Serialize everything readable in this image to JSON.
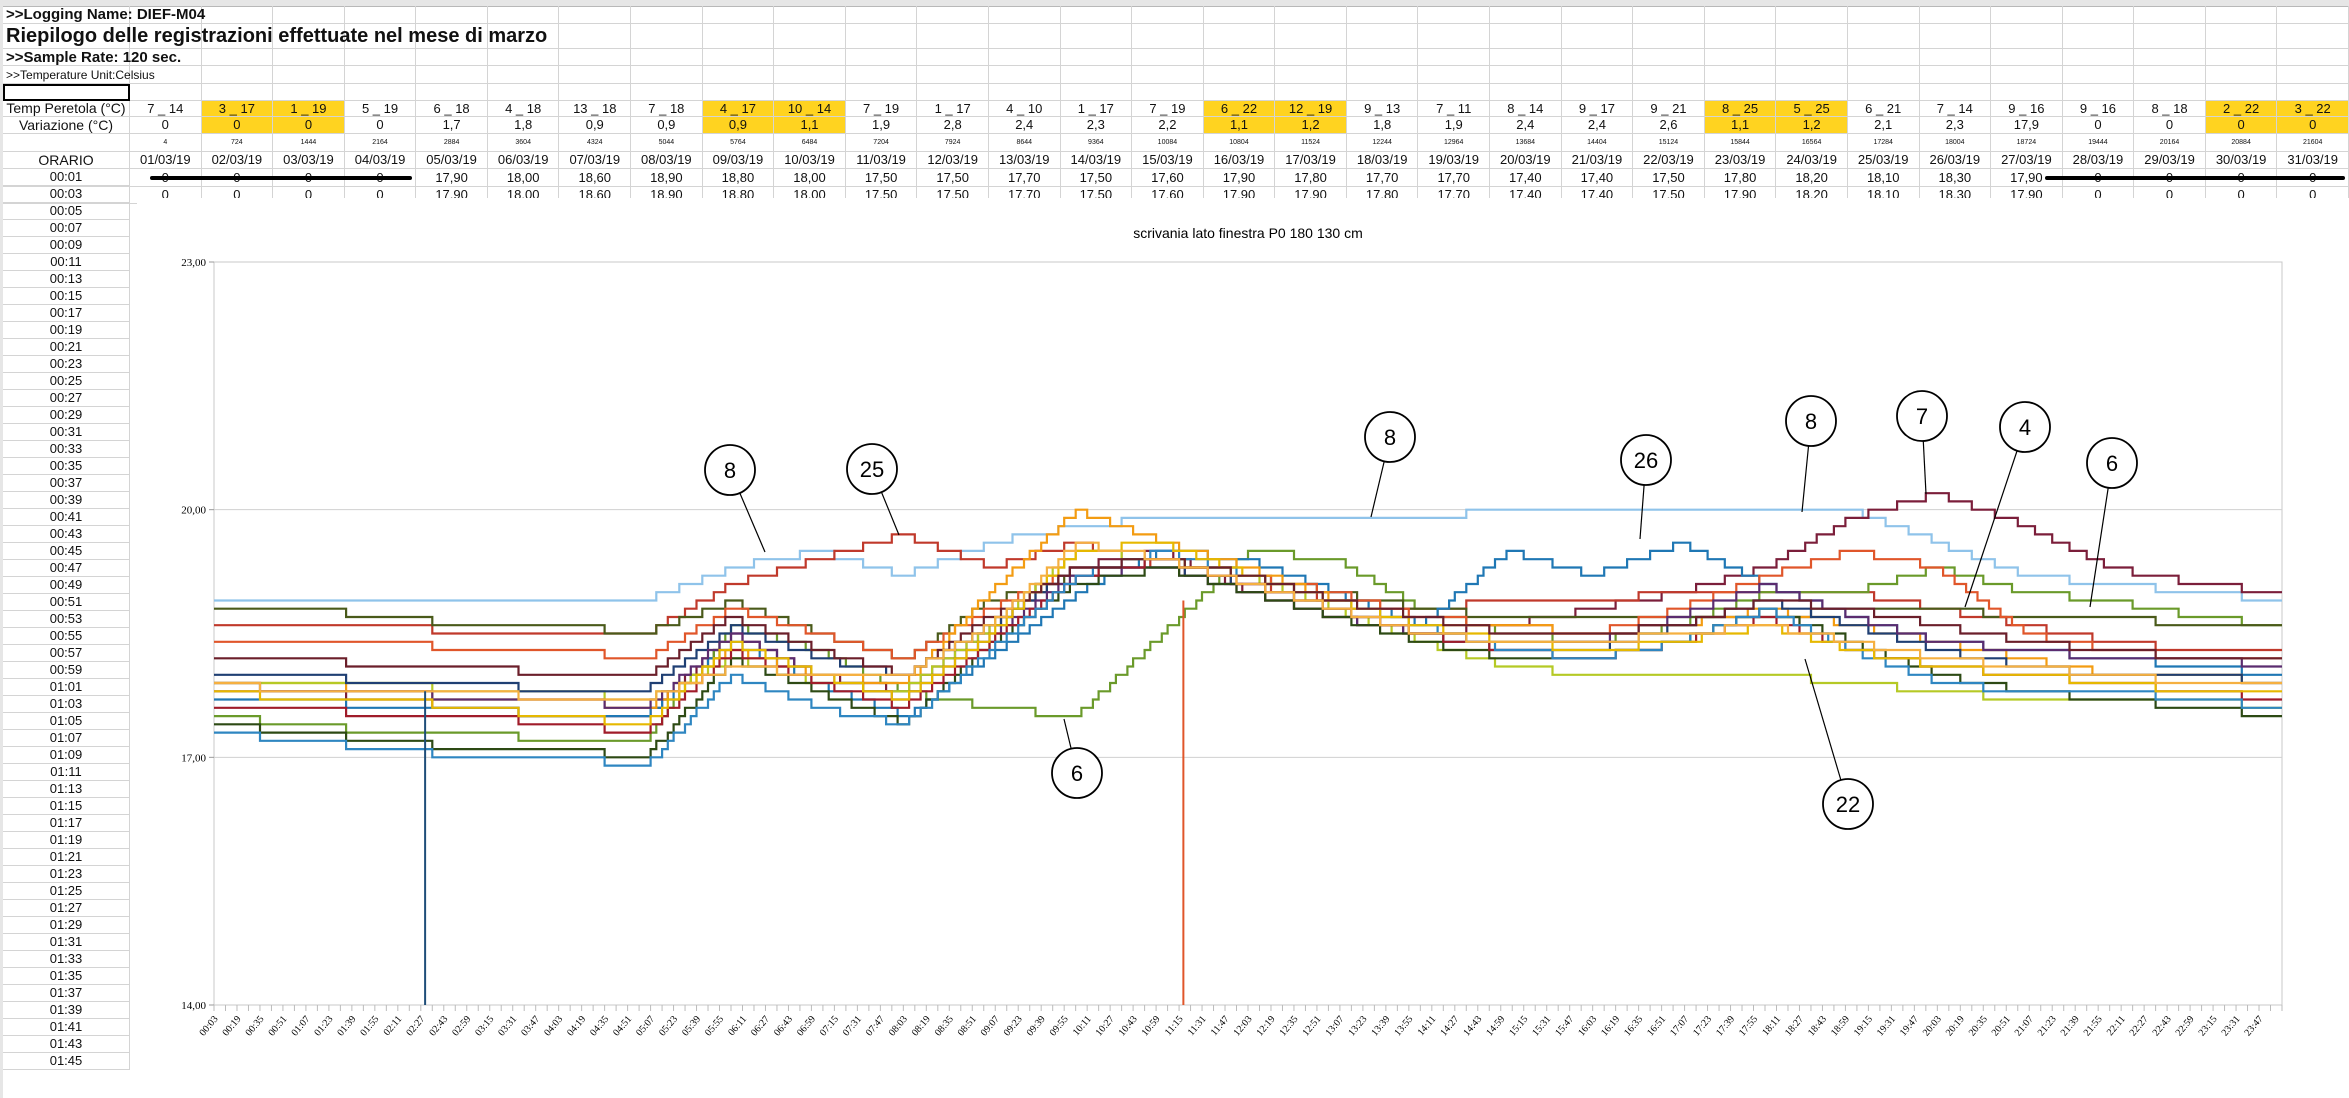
{
  "sheet": {
    "logging_name": ">>Logging Name: DIEF-M04",
    "title": "Riepilogo delle registrazioni effettuate nel mese di marzo",
    "sample_rate": ">>Sample Rate: 120 sec.",
    "temp_unit": ">>Temperature Unit:Celsius",
    "row_labels": {
      "peretola": "Temp Peretola (°C)",
      "variazione": "Variazione (°C)",
      "orario": "ORARIO"
    },
    "highlight_color": "#ffd320",
    "days": [
      {
        "date": "01/03/19",
        "peretola": "7 _ 14",
        "variazione": "0",
        "idx": "4",
        "v0001": "0",
        "v0003": "0",
        "hl": false
      },
      {
        "date": "02/03/19",
        "peretola": "3 _ 17",
        "variazione": "0",
        "idx": "724",
        "v0001": "0",
        "v0003": "0",
        "hl": true
      },
      {
        "date": "03/03/19",
        "peretola": "1 _ 19",
        "variazione": "0",
        "idx": "1444",
        "v0001": "0",
        "v0003": "0",
        "hl": true
      },
      {
        "date": "04/03/19",
        "peretola": "5 _ 19",
        "variazione": "0",
        "idx": "2164",
        "v0001": "0",
        "v0003": "0",
        "hl": false
      },
      {
        "date": "05/03/19",
        "peretola": "6 _ 18",
        "variazione": "1,7",
        "idx": "2884",
        "v0001": "17,90",
        "v0003": "17,90",
        "hl": false
      },
      {
        "date": "06/03/19",
        "peretola": "4 _ 18",
        "variazione": "1,8",
        "idx": "3604",
        "v0001": "18,00",
        "v0003": "18,00",
        "hl": false
      },
      {
        "date": "07/03/19",
        "peretola": "13 _ 18",
        "variazione": "0,9",
        "idx": "4324",
        "v0001": "18,60",
        "v0003": "18,60",
        "hl": false
      },
      {
        "date": "08/03/19",
        "peretola": "7 _ 18",
        "variazione": "0,9",
        "idx": "5044",
        "v0001": "18,90",
        "v0003": "18,90",
        "hl": false
      },
      {
        "date": "09/03/19",
        "peretola": "4 _ 17",
        "variazione": "0,9",
        "idx": "5764",
        "v0001": "18,80",
        "v0003": "18,80",
        "hl": true
      },
      {
        "date": "10/03/19",
        "peretola": "10 _ 14",
        "variazione": "1,1",
        "idx": "6484",
        "v0001": "18,00",
        "v0003": "18,00",
        "hl": true
      },
      {
        "date": "11/03/19",
        "peretola": "7 _ 19",
        "variazione": "1,9",
        "idx": "7204",
        "v0001": "17,50",
        "v0003": "17,50",
        "hl": false
      },
      {
        "date": "12/03/19",
        "peretola": "1 _ 17",
        "variazione": "2,8",
        "idx": "7924",
        "v0001": "17,50",
        "v0003": "17,50",
        "hl": false
      },
      {
        "date": "13/03/19",
        "peretola": "4 _ 10",
        "variazione": "2,4",
        "idx": "8644",
        "v0001": "17,70",
        "v0003": "17,70",
        "hl": false
      },
      {
        "date": "14/03/19",
        "peretola": "1 _ 17",
        "variazione": "2,3",
        "idx": "9364",
        "v0001": "17,50",
        "v0003": "17,50",
        "hl": false
      },
      {
        "date": "15/03/19",
        "peretola": "7 _ 19",
        "variazione": "2,2",
        "idx": "10084",
        "v0001": "17,60",
        "v0003": "17,60",
        "hl": false
      },
      {
        "date": "16/03/19",
        "peretola": "6 _ 22",
        "variazione": "1,1",
        "idx": "10804",
        "v0001": "17,90",
        "v0003": "17,90",
        "hl": true
      },
      {
        "date": "17/03/19",
        "peretola": "12 _ 19",
        "variazione": "1,2",
        "idx": "11524",
        "v0001": "17,80",
        "v0003": "17,90",
        "hl": true
      },
      {
        "date": "18/03/19",
        "peretola": "9 _ 13",
        "variazione": "1,8",
        "idx": "12244",
        "v0001": "17,70",
        "v0003": "17,80",
        "hl": false
      },
      {
        "date": "19/03/19",
        "peretola": "7 _ 11",
        "variazione": "1,9",
        "idx": "12964",
        "v0001": "17,70",
        "v0003": "17,70",
        "hl": false
      },
      {
        "date": "20/03/19",
        "peretola": "8 _ 14",
        "variazione": "2,4",
        "idx": "13684",
        "v0001": "17,40",
        "v0003": "17,40",
        "hl": false
      },
      {
        "date": "21/03/19",
        "peretola": "9 _ 17",
        "variazione": "2,4",
        "idx": "14404",
        "v0001": "17,40",
        "v0003": "17,40",
        "hl": false
      },
      {
        "date": "22/03/19",
        "peretola": "9 _ 21",
        "variazione": "2,6",
        "idx": "15124",
        "v0001": "17,50",
        "v0003": "17,50",
        "hl": false
      },
      {
        "date": "23/03/19",
        "peretola": "8 _ 25",
        "variazione": "1,1",
        "idx": "15844",
        "v0001": "17,80",
        "v0003": "17,90",
        "hl": true
      },
      {
        "date": "24/03/19",
        "peretola": "5 _ 25",
        "variazione": "1,2",
        "idx": "16564",
        "v0001": "18,20",
        "v0003": "18,20",
        "hl": true
      },
      {
        "date": "25/03/19",
        "peretola": "6 _ 21",
        "variazione": "2,1",
        "idx": "17284",
        "v0001": "18,10",
        "v0003": "18,10",
        "hl": false
      },
      {
        "date": "26/03/19",
        "peretola": "7 _ 14",
        "variazione": "2,3",
        "idx": "18004",
        "v0001": "18,30",
        "v0003": "18,30",
        "hl": false
      },
      {
        "date": "27/03/19",
        "peretola": "9 _ 16",
        "variazione": "17,9",
        "idx": "18724",
        "v0001": "17,90",
        "v0003": "17,90",
        "hl": false
      },
      {
        "date": "28/03/19",
        "peretola": "9 _ 16",
        "variazione": "0",
        "idx": "19444",
        "v0001": "0",
        "v0003": "0",
        "hl": false
      },
      {
        "date": "29/03/19",
        "peretola": "8 _ 18",
        "variazione": "0",
        "idx": "20164",
        "v0001": "0",
        "v0003": "0",
        "hl": false
      },
      {
        "date": "30/03/19",
        "peretola": "2 _ 22",
        "variazione": "0",
        "idx": "20884",
        "v0001": "0",
        "v0003": "0",
        "hl": true
      },
      {
        "date": "31/03/19",
        "peretola": "3 _ 22",
        "variazione": "0",
        "idx": "21604",
        "v0001": "0",
        "v0003": "0",
        "hl": true
      }
    ],
    "times": [
      "00:01",
      "00:03",
      "00:05",
      "00:07",
      "00:09",
      "00:11",
      "00:13",
      "00:15",
      "00:17",
      "00:19",
      "00:21",
      "00:23",
      "00:25",
      "00:27",
      "00:29",
      "00:31",
      "00:33",
      "00:35",
      "00:37",
      "00:39",
      "00:41",
      "00:43",
      "00:45",
      "00:47",
      "00:49",
      "00:51",
      "00:53",
      "00:55",
      "00:57",
      "00:59",
      "01:01",
      "01:03",
      "01:05",
      "01:07",
      "01:09",
      "01:11",
      "01:13",
      "01:15",
      "01:17",
      "01:19",
      "01:21",
      "01:23",
      "01:25",
      "01:27",
      "01:29",
      "01:31",
      "01:33",
      "01:35",
      "01:37",
      "01:39",
      "01:41",
      "01:43",
      "01:45"
    ]
  },
  "chart_data": {
    "type": "line",
    "title": "scrivania lato finestra P0 180   130 cm",
    "xlabel": "",
    "ylabel": "",
    "ylim": [
      14,
      23
    ],
    "y_ticks": [
      "14,00",
      "17,00",
      "20,00",
      "23,00"
    ],
    "y_tick_values": [
      14,
      17,
      20,
      23
    ],
    "grid": true,
    "legend": "none",
    "x_tick_labels": [
      "00:03",
      "00:19",
      "00:35",
      "00:51",
      "01:07",
      "01:23",
      "01:39",
      "01:55",
      "02:11",
      "02:27",
      "02:43",
      "02:59",
      "03:15",
      "03:31",
      "03:47",
      "04:03",
      "04:19",
      "04:35",
      "04:51",
      "05:07",
      "05:23",
      "05:39",
      "05:55",
      "06:11",
      "06:27",
      "06:43",
      "06:59",
      "07:15",
      "07:31",
      "07:47",
      "08:03",
      "08:19",
      "08:35",
      "08:51",
      "09:07",
      "09:23",
      "09:39",
      "09:55",
      "10:11",
      "10:27",
      "10:43",
      "10:59",
      "11:15",
      "11:31",
      "11:47",
      "12:03",
      "12:19",
      "12:35",
      "12:51",
      "13:07",
      "13:23",
      "13:39",
      "13:55",
      "14:11",
      "14:27",
      "14:43",
      "14:59",
      "15:15",
      "15:31",
      "15:47",
      "16:03",
      "16:19",
      "16:35",
      "16:51",
      "17:07",
      "17:23",
      "17:39",
      "17:55",
      "18:11",
      "18:27",
      "18:43",
      "18:59",
      "19:15",
      "19:31",
      "19:47",
      "20:03",
      "20:19",
      "20:35",
      "20:51",
      "21:07",
      "21:23",
      "21:39",
      "21:55",
      "22:11",
      "22:27",
      "22:43",
      "22:59",
      "23:15",
      "23:31",
      "23:47"
    ],
    "x_hours": [
      0,
      1,
      2,
      3,
      4,
      5,
      6,
      7,
      8,
      9,
      10,
      11,
      12,
      13,
      14,
      15,
      16,
      17,
      18,
      19,
      20,
      21,
      22,
      23,
      24
    ],
    "series": [
      {
        "color": "#8fc3ea",
        "values": [
          18.9,
          18.9,
          18.9,
          18.9,
          18.9,
          18.9,
          19.3,
          19.5,
          19.2,
          19.6,
          19.8,
          19.9,
          19.9,
          19.9,
          19.9,
          20.0,
          20.0,
          20.0,
          20.0,
          20.0,
          19.6,
          19.2,
          19.1,
          19.0,
          18.9
        ]
      },
      {
        "color": "#7b1e3a",
        "values": [
          17.8,
          17.8,
          17.7,
          17.6,
          17.5,
          17.5,
          18.5,
          18.0,
          17.8,
          18.6,
          19.3,
          19.5,
          19.0,
          18.7,
          18.5,
          18.6,
          18.8,
          19.0,
          19.3,
          19.9,
          20.2,
          19.8,
          19.3,
          19.1,
          19.0
        ]
      },
      {
        "color": "#c0392b",
        "values": [
          18.6,
          18.6,
          18.6,
          18.5,
          18.5,
          18.5,
          19.1,
          19.4,
          19.7,
          19.3,
          19.6,
          19.3,
          19.1,
          18.9,
          18.8,
          18.9,
          18.9,
          19.0,
          19.0,
          19.0,
          18.8,
          18.6,
          18.4,
          18.3,
          18.3
        ]
      },
      {
        "color": "#6a9a2a",
        "values": [
          17.5,
          17.4,
          17.3,
          17.3,
          17.2,
          17.2,
          18.6,
          18.3,
          17.8,
          17.6,
          17.5,
          18.5,
          19.5,
          19.4,
          18.8,
          18.5,
          18.4,
          18.6,
          19.0,
          19.0,
          19.3,
          19.0,
          18.9,
          18.7,
          18.6
        ]
      },
      {
        "color": "#4a5a1a",
        "values": [
          18.8,
          18.8,
          18.7,
          18.6,
          18.6,
          18.5,
          18.9,
          18.5,
          18.2,
          18.9,
          19.2,
          19.4,
          19.2,
          19.0,
          18.8,
          18.7,
          18.7,
          18.7,
          18.7,
          18.8,
          18.8,
          18.7,
          18.7,
          18.6,
          18.6
        ]
      },
      {
        "color": "#1f77b4",
        "values": [
          17.7,
          17.7,
          17.6,
          17.6,
          17.5,
          17.5,
          18.4,
          17.9,
          17.5,
          18.2,
          19.0,
          19.5,
          19.4,
          19.0,
          18.6,
          19.5,
          19.2,
          19.6,
          19.1,
          18.7,
          18.4,
          18.3,
          18.2,
          18.1,
          18.0
        ]
      },
      {
        "color": "#e0562a",
        "values": [
          18.4,
          18.4,
          18.4,
          18.3,
          18.3,
          18.2,
          18.8,
          18.5,
          18.2,
          18.8,
          19.3,
          19.4,
          19.2,
          19.0,
          18.7,
          18.6,
          18.5,
          18.8,
          19.2,
          19.5,
          19.3,
          18.5,
          18.3,
          18.2,
          18.2
        ]
      },
      {
        "color": "#f39c12",
        "values": [
          17.9,
          17.9,
          17.8,
          17.7,
          17.7,
          17.6,
          18.3,
          18.0,
          17.9,
          19.0,
          20.0,
          19.6,
          19.3,
          18.9,
          18.6,
          18.6,
          18.5,
          18.6,
          18.8,
          18.6,
          18.4,
          18.2,
          18.0,
          18.0,
          17.9
        ]
      },
      {
        "color": "#b5c925",
        "values": [
          17.9,
          17.9,
          17.9,
          17.8,
          17.8,
          17.7,
          18.2,
          17.9,
          17.8,
          18.6,
          19.5,
          19.4,
          19.2,
          18.8,
          18.4,
          18.1,
          18.0,
          18.0,
          18.0,
          17.9,
          17.8,
          17.7,
          17.7,
          17.7,
          17.6
        ]
      },
      {
        "color": "#1f3f73",
        "values": [
          18.0,
          18.0,
          17.9,
          17.9,
          17.8,
          17.8,
          18.6,
          18.2,
          18.0,
          18.6,
          19.3,
          19.3,
          19.1,
          18.8,
          18.5,
          18.3,
          18.3,
          18.6,
          18.9,
          18.6,
          18.3,
          18.1,
          18.0,
          18.0,
          17.9
        ]
      },
      {
        "color": "#5b2c6f",
        "values": [
          17.9,
          17.8,
          17.8,
          17.7,
          17.7,
          17.6,
          18.5,
          18.0,
          17.7,
          18.5,
          19.2,
          19.3,
          19.0,
          18.7,
          18.5,
          18.4,
          18.4,
          18.7,
          19.1,
          18.7,
          18.4,
          18.3,
          18.2,
          18.2,
          18.1
        ]
      },
      {
        "color": "#2d4a14",
        "values": [
          17.4,
          17.3,
          17.2,
          17.1,
          17.1,
          17.0,
          18.2,
          17.8,
          17.4,
          18.4,
          19.1,
          19.3,
          19.0,
          18.7,
          18.4,
          18.2,
          18.2,
          18.4,
          18.8,
          18.4,
          18.0,
          17.8,
          17.7,
          17.6,
          17.5
        ]
      },
      {
        "color": "#a01c2a",
        "values": [
          17.6,
          17.6,
          17.5,
          17.5,
          17.4,
          17.3,
          18.3,
          17.9,
          17.6,
          18.4,
          19.2,
          19.4,
          19.1,
          18.8,
          18.5,
          18.3,
          18.2,
          18.4,
          18.7,
          18.3,
          18.1,
          18.0,
          17.9,
          17.8,
          17.7
        ]
      },
      {
        "color": "#2e86c1",
        "values": [
          17.3,
          17.2,
          17.1,
          17.0,
          17.0,
          16.9,
          18.0,
          17.6,
          17.4,
          18.3,
          19.2,
          19.5,
          19.2,
          18.9,
          18.6,
          18.3,
          18.2,
          18.4,
          18.8,
          18.3,
          17.9,
          17.8,
          17.8,
          17.7,
          17.6
        ]
      },
      {
        "color": "#e6b800",
        "values": [
          17.8,
          17.7,
          17.7,
          17.6,
          17.5,
          17.4,
          18.4,
          18.0,
          17.7,
          18.5,
          19.5,
          19.6,
          19.2,
          18.9,
          18.6,
          18.4,
          18.3,
          18.4,
          18.6,
          18.3,
          18.1,
          18.0,
          17.9,
          17.8,
          17.8
        ]
      },
      {
        "color": "#6b1f2a",
        "values": [
          18.2,
          18.2,
          18.1,
          18.1,
          18.0,
          18.0,
          18.7,
          18.3,
          18.0,
          18.7,
          19.3,
          19.4,
          19.2,
          18.9,
          18.7,
          18.5,
          18.5,
          18.6,
          18.9,
          18.8,
          18.6,
          18.4,
          18.3,
          18.2,
          18.2
        ]
      },
      {
        "color": "#f5b041",
        "values": [
          17.9,
          17.8,
          17.8,
          17.8,
          17.7,
          17.7,
          18.1,
          18.0,
          18.0,
          18.6,
          19.6,
          19.4,
          19.1,
          18.8,
          18.5,
          18.4,
          18.4,
          18.5,
          18.6,
          18.4,
          18.2,
          18.1,
          18.0,
          17.9,
          17.9
        ]
      }
    ],
    "drops": [
      {
        "time": "02:27",
        "from": 17.8,
        "color": "#1f4e79"
      },
      {
        "time": "11:15",
        "from": 18.9,
        "color": "#e0562a"
      }
    ],
    "annotations": [
      "8",
      "25",
      "6",
      "8",
      "26",
      "8",
      "7",
      "4",
      "6",
      "22"
    ]
  }
}
